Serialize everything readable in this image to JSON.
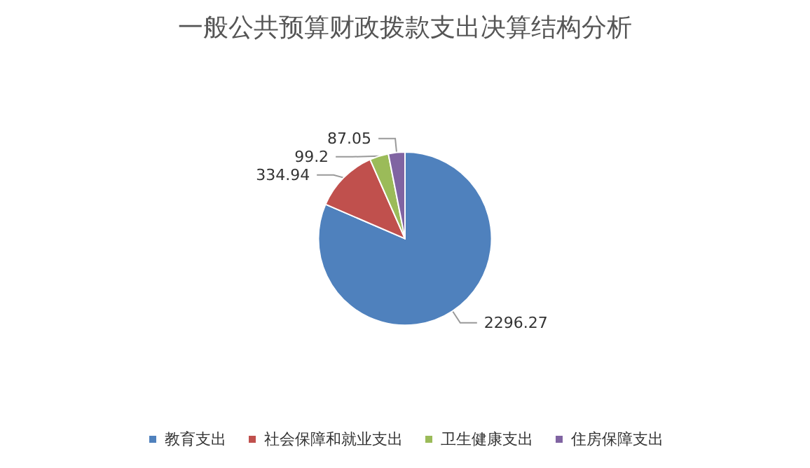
{
  "chart_data": {
    "type": "pie",
    "title": "一般公共预算财政拨款支出决算结构分析",
    "categories": [
      "教育支出",
      "社会保障和就业支出",
      "卫生健康支出",
      "住房保障支出"
    ],
    "values": [
      2296.27,
      334.94,
      99.2,
      87.05
    ],
    "colors": [
      "#4f81bd",
      "#c0504d",
      "#9bbb59",
      "#8064a2"
    ],
    "data_labels": true,
    "legend": "bottom"
  }
}
